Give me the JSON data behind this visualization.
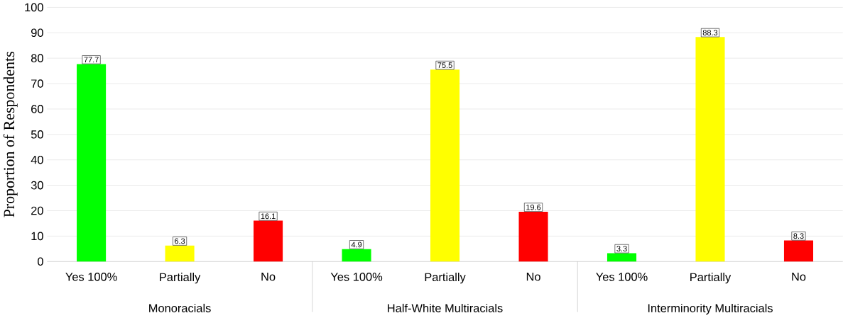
{
  "chart_data": {
    "type": "bar",
    "ylabel": "Proportion of  Respondents",
    "categories": [
      "Yes 100%",
      "Partially",
      "No",
      "Yes 100%",
      "Partially",
      "No",
      "Yes 100%",
      "Partially",
      "No"
    ],
    "values": [
      77.7,
      6.3,
      16.1,
      4.9,
      75.5,
      19.6,
      3.3,
      88.3,
      8.3
    ],
    "colors": [
      "#00ff00",
      "#ffff00",
      "#ff0000",
      "#00ff00",
      "#ffff00",
      "#ff0000",
      "#00ff00",
      "#ffff00",
      "#ff0000"
    ],
    "annotations": [
      "Monoracials",
      "Half-White Multiracials",
      "Interminority Multiracials"
    ],
    "ylim": [
      0,
      100
    ],
    "yticks": [
      0,
      10,
      20,
      30,
      40,
      50,
      60,
      70,
      80,
      90,
      100
    ],
    "grid": "y",
    "data_labels": true
  }
}
